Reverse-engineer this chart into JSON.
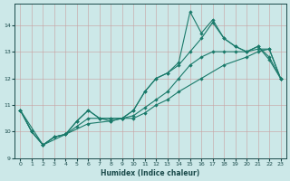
{
  "xlabel": "Humidex (Indice chaleur)",
  "background_color": "#cce8e8",
  "line_color": "#1a7a6a",
  "xlim": [
    -0.5,
    23.5
  ],
  "ylim": [
    9.0,
    14.8
  ],
  "yticks": [
    9,
    10,
    11,
    12,
    13,
    14
  ],
  "xticks": [
    0,
    1,
    2,
    3,
    4,
    5,
    6,
    7,
    8,
    9,
    10,
    11,
    12,
    13,
    14,
    15,
    16,
    17,
    18,
    19,
    20,
    21,
    22,
    23
  ],
  "series1": [
    [
      0,
      10.8
    ],
    [
      1,
      10.0
    ],
    [
      2,
      9.5
    ],
    [
      3,
      9.8
    ],
    [
      4,
      9.9
    ],
    [
      5,
      10.4
    ],
    [
      6,
      10.8
    ],
    [
      7,
      10.5
    ],
    [
      8,
      10.5
    ],
    [
      9,
      10.5
    ],
    [
      10,
      10.8
    ],
    [
      11,
      11.5
    ],
    [
      12,
      12.0
    ],
    [
      13,
      12.2
    ],
    [
      14,
      12.6
    ],
    [
      15,
      14.5
    ],
    [
      16,
      13.7
    ],
    [
      17,
      14.2
    ],
    [
      18,
      13.5
    ],
    [
      19,
      13.2
    ],
    [
      20,
      13.0
    ],
    [
      21,
      13.2
    ],
    [
      22,
      12.7
    ],
    [
      23,
      12.0
    ]
  ],
  "series2": [
    [
      0,
      10.8
    ],
    [
      2,
      9.5
    ],
    [
      3,
      9.8
    ],
    [
      4,
      9.9
    ],
    [
      5,
      10.4
    ],
    [
      6,
      10.8
    ],
    [
      7,
      10.5
    ],
    [
      8,
      10.5
    ],
    [
      9,
      10.5
    ],
    [
      10,
      10.8
    ],
    [
      11,
      11.5
    ],
    [
      12,
      12.0
    ],
    [
      13,
      12.2
    ],
    [
      14,
      12.5
    ],
    [
      15,
      13.0
    ],
    [
      16,
      13.5
    ],
    [
      17,
      14.1
    ],
    [
      18,
      13.5
    ],
    [
      19,
      13.2
    ],
    [
      20,
      13.0
    ],
    [
      21,
      13.2
    ],
    [
      22,
      12.8
    ],
    [
      23,
      12.0
    ]
  ],
  "series3": [
    [
      0,
      10.8
    ],
    [
      1,
      10.0
    ],
    [
      2,
      9.5
    ],
    [
      3,
      9.8
    ],
    [
      4,
      9.9
    ],
    [
      5,
      10.2
    ],
    [
      6,
      10.5
    ],
    [
      7,
      10.5
    ],
    [
      8,
      10.4
    ],
    [
      9,
      10.5
    ],
    [
      10,
      10.6
    ],
    [
      11,
      10.9
    ],
    [
      12,
      11.2
    ],
    [
      13,
      11.5
    ],
    [
      14,
      12.0
    ],
    [
      15,
      12.5
    ],
    [
      16,
      12.8
    ],
    [
      17,
      13.0
    ],
    [
      18,
      13.0
    ],
    [
      19,
      13.0
    ],
    [
      20,
      13.0
    ],
    [
      21,
      13.1
    ],
    [
      22,
      13.1
    ],
    [
      23,
      12.0
    ]
  ],
  "series4": [
    [
      0,
      10.8
    ],
    [
      1,
      10.0
    ],
    [
      2,
      9.5
    ],
    [
      4,
      9.9
    ],
    [
      6,
      10.3
    ],
    [
      8,
      10.4
    ],
    [
      9,
      10.5
    ],
    [
      10,
      10.5
    ],
    [
      11,
      10.7
    ],
    [
      12,
      11.0
    ],
    [
      13,
      11.2
    ],
    [
      14,
      11.5
    ],
    [
      16,
      12.0
    ],
    [
      18,
      12.5
    ],
    [
      20,
      12.8
    ],
    [
      21,
      13.0
    ],
    [
      22,
      13.1
    ],
    [
      23,
      12.0
    ]
  ]
}
